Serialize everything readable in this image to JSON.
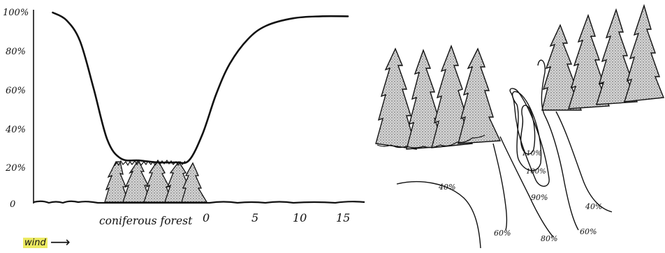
{
  "left_panel": {
    "y_ticks": [
      "100%",
      "80%",
      "60%",
      "40%",
      "20%",
      "0"
    ],
    "x_ticks": [
      "0",
      "5",
      "10",
      "15"
    ],
    "forest_label": "coniferous forest",
    "wind_label": "wind",
    "wind_arrow": "⟶",
    "curve_points": [
      {
        "x": -16.5,
        "y": 100
      },
      {
        "x": -15,
        "y": 96
      },
      {
        "x": -13.5,
        "y": 85
      },
      {
        "x": -12,
        "y": 60
      },
      {
        "x": -10.5,
        "y": 33
      },
      {
        "x": -9,
        "y": 23
      },
      {
        "x": -7,
        "y": 22
      },
      {
        "x": -5,
        "y": 21
      },
      {
        "x": -3,
        "y": 21
      },
      {
        "x": -1.5,
        "y": 22
      },
      {
        "x": 0,
        "y": 36
      },
      {
        "x": 1.5,
        "y": 57
      },
      {
        "x": 3,
        "y": 73
      },
      {
        "x": 5,
        "y": 86
      },
      {
        "x": 7,
        "y": 93
      },
      {
        "x": 10,
        "y": 97
      },
      {
        "x": 13,
        "y": 98
      },
      {
        "x": 16,
        "y": 98
      }
    ]
  },
  "right_panel": {
    "contour_labels": [
      "110%",
      "100%",
      "90%",
      "80%",
      "60%",
      "40%",
      "40%",
      "60%"
    ]
  },
  "colors": {
    "ink": "#111111",
    "stipple": "#bdbdbd",
    "highlight": "#ecea62"
  }
}
